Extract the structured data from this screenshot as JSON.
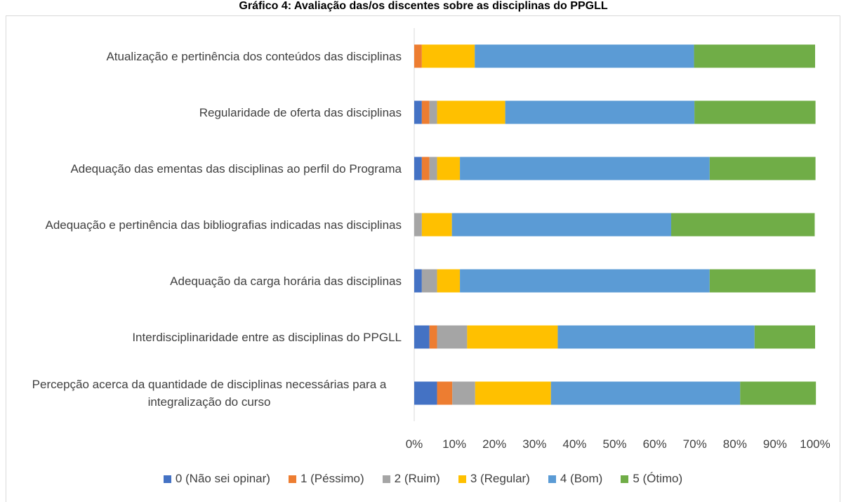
{
  "chart_data": {
    "type": "stacked_bar_horizontal",
    "title": "Gráfico 4: Avaliação das/os discentes sobre as disciplinas do PPGLL",
    "categories": [
      "Atualização e pertinência dos conteúdos das disciplinas",
      "Regularidade de oferta das disciplinas",
      "Adequação das ementas das disciplinas ao perfil do Programa",
      "Adequação e pertinência das bibliografias indicadas nas disciplinas",
      "Adequação da carga horária das disciplinas",
      "Interdisciplinaridade entre as disciplinas do PPGLL",
      "Percepção acerca da quantidade de disciplinas necessárias para a integralização do curso"
    ],
    "series": [
      {
        "name": "0 (Não sei opinar)",
        "color": "#4472c4",
        "values": [
          0,
          1.9,
          1.9,
          0,
          1.9,
          3.8,
          5.7
        ]
      },
      {
        "name": "1 (Péssimo)",
        "color": "#ed7d31",
        "values": [
          1.9,
          1.9,
          1.9,
          0,
          0,
          1.9,
          3.8
        ]
      },
      {
        "name": "2 (Ruim)",
        "color": "#a5a5a5",
        "values": [
          0,
          1.9,
          1.9,
          1.9,
          3.8,
          7.5,
          5.7
        ]
      },
      {
        "name": "3 (Regular)",
        "color": "#ffc000",
        "values": [
          13.2,
          17.0,
          5.7,
          7.5,
          5.7,
          22.6,
          18.9
        ]
      },
      {
        "name": "4 (Bom)",
        "color": "#5b9bd5",
        "values": [
          54.7,
          47.2,
          62.3,
          54.7,
          62.3,
          49.1,
          47.2
        ]
      },
      {
        "name": "5 (Ótimo)",
        "color": "#70ad47",
        "values": [
          30.2,
          30.2,
          26.4,
          35.8,
          26.4,
          15.1,
          18.9
        ]
      }
    ],
    "xlim": [
      0,
      100
    ],
    "xticks": [
      {
        "value": 0,
        "label": "0%"
      },
      {
        "value": 10,
        "label": "10%"
      },
      {
        "value": 20,
        "label": "20%"
      },
      {
        "value": 30,
        "label": "30%"
      },
      {
        "value": 40,
        "label": "40%"
      },
      {
        "value": 50,
        "label": "50%"
      },
      {
        "value": 60,
        "label": "60%"
      },
      {
        "value": 70,
        "label": "70%"
      },
      {
        "value": 80,
        "label": "80%"
      },
      {
        "value": 90,
        "label": "90%"
      },
      {
        "value": 100,
        "label": "100%"
      }
    ],
    "legend": "bottom"
  }
}
